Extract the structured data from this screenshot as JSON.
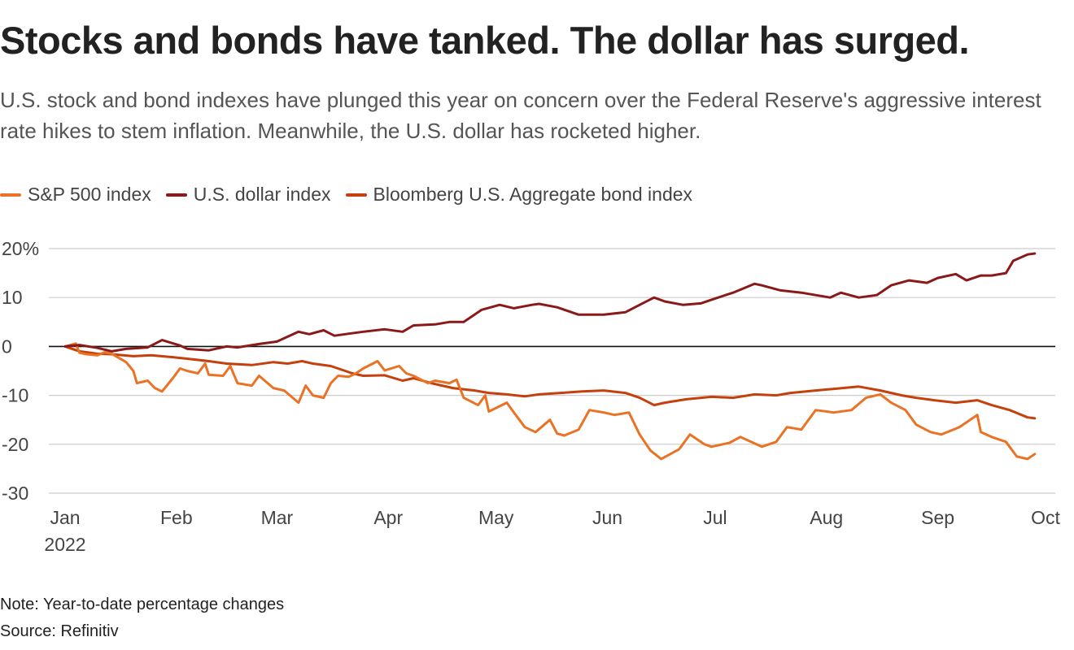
{
  "title": "Stocks and bonds have tanked. The dollar has surged.",
  "subtitle": "U.S. stock and bond indexes have plunged this year on concern over the Federal Reserve's aggressive interest rate hikes to stem inflation. Meanwhile, the U.S. dollar has rocketed higher.",
  "note": "Note: Year-to-date percentage changes",
  "source": "Source: Refinitiv",
  "chart_data": {
    "type": "line",
    "legend_placement": "top-left",
    "grid": true,
    "ylim": [
      -30,
      20
    ],
    "y_ticks": [
      {
        "value": 20,
        "label": "20%"
      },
      {
        "value": 10,
        "label": "10"
      },
      {
        "value": 0,
        "label": "0"
      },
      {
        "value": -10,
        "label": "-10"
      },
      {
        "value": -20,
        "label": "-20"
      },
      {
        "value": -30,
        "label": "-30"
      }
    ],
    "x_ticks": [
      {
        "value": "2022-01-01",
        "label": "Jan",
        "sublabel": "2022"
      },
      {
        "value": "2022-02-01",
        "label": "Feb"
      },
      {
        "value": "2022-03-01",
        "label": "Mar"
      },
      {
        "value": "2022-04-01",
        "label": "Apr"
      },
      {
        "value": "2022-05-01",
        "label": "May"
      },
      {
        "value": "2022-06-01",
        "label": "Jun"
      },
      {
        "value": "2022-07-01",
        "label": "Jul"
      },
      {
        "value": "2022-08-01",
        "label": "Aug"
      },
      {
        "value": "2022-09-01",
        "label": "Sep"
      },
      {
        "value": "2022-10-01",
        "label": "Oct"
      }
    ],
    "xlim": [
      "2022-01-01",
      "2022-10-01"
    ],
    "series": [
      {
        "name": "S&P 500 index",
        "color": "#ea7225",
        "points": [
          [
            "2022-01-01",
            0
          ],
          [
            "2022-01-04",
            0.6
          ],
          [
            "2022-01-05",
            -1.3
          ],
          [
            "2022-01-07",
            -1.6
          ],
          [
            "2022-01-10",
            -1.8
          ],
          [
            "2022-01-12",
            -1.2
          ],
          [
            "2022-01-14",
            -1.5
          ],
          [
            "2022-01-18",
            -3.2
          ],
          [
            "2022-01-20",
            -5.0
          ],
          [
            "2022-01-21",
            -7.5
          ],
          [
            "2022-01-24",
            -7.0
          ],
          [
            "2022-01-26",
            -8.5
          ],
          [
            "2022-01-28",
            -9.2
          ],
          [
            "2022-01-31",
            -6.5
          ],
          [
            "2022-02-02",
            -4.5
          ],
          [
            "2022-02-04",
            -5.0
          ],
          [
            "2022-02-07",
            -5.5
          ],
          [
            "2022-02-09",
            -3.5
          ],
          [
            "2022-02-10",
            -5.8
          ],
          [
            "2022-02-14",
            -6.0
          ],
          [
            "2022-02-16",
            -4.0
          ],
          [
            "2022-02-18",
            -7.5
          ],
          [
            "2022-02-22",
            -8.0
          ],
          [
            "2022-02-24",
            -6.0
          ],
          [
            "2022-02-28",
            -8.5
          ],
          [
            "2022-03-03",
            -9.0
          ],
          [
            "2022-03-07",
            -11.5
          ],
          [
            "2022-03-09",
            -8.0
          ],
          [
            "2022-03-11",
            -10.0
          ],
          [
            "2022-03-14",
            -10.5
          ],
          [
            "2022-03-16",
            -7.5
          ],
          [
            "2022-03-18",
            -6.0
          ],
          [
            "2022-03-21",
            -6.2
          ],
          [
            "2022-03-23",
            -5.5
          ],
          [
            "2022-03-25",
            -4.5
          ],
          [
            "2022-03-29",
            -3.0
          ],
          [
            "2022-03-31",
            -4.9
          ],
          [
            "2022-04-04",
            -4.0
          ],
          [
            "2022-04-06",
            -5.5
          ],
          [
            "2022-04-08",
            -6.0
          ],
          [
            "2022-04-12",
            -7.5
          ],
          [
            "2022-04-14",
            -7.0
          ],
          [
            "2022-04-18",
            -7.5
          ],
          [
            "2022-04-20",
            -6.8
          ],
          [
            "2022-04-22",
            -10.5
          ],
          [
            "2022-04-26",
            -12.0
          ],
          [
            "2022-04-28",
            -10.0
          ],
          [
            "2022-04-29",
            -13.3
          ],
          [
            "2022-05-04",
            -11.5
          ],
          [
            "2022-05-06",
            -13.5
          ],
          [
            "2022-05-09",
            -16.5
          ],
          [
            "2022-05-12",
            -17.5
          ],
          [
            "2022-05-16",
            -15.0
          ],
          [
            "2022-05-18",
            -17.8
          ],
          [
            "2022-05-20",
            -18.2
          ],
          [
            "2022-05-24",
            -17.0
          ],
          [
            "2022-05-27",
            -13.0
          ],
          [
            "2022-05-31",
            -13.5
          ],
          [
            "2022-06-03",
            -14.0
          ],
          [
            "2022-06-07",
            -13.5
          ],
          [
            "2022-06-10",
            -18.0
          ],
          [
            "2022-06-13",
            -21.3
          ],
          [
            "2022-06-16",
            -23.0
          ],
          [
            "2022-06-21",
            -21.0
          ],
          [
            "2022-06-24",
            -18.0
          ],
          [
            "2022-06-28",
            -20.0
          ],
          [
            "2022-06-30",
            -20.5
          ],
          [
            "2022-07-05",
            -19.7
          ],
          [
            "2022-07-08",
            -18.5
          ],
          [
            "2022-07-11",
            -19.5
          ],
          [
            "2022-07-14",
            -20.5
          ],
          [
            "2022-07-18",
            -19.5
          ],
          [
            "2022-07-21",
            -16.5
          ],
          [
            "2022-07-25",
            -17.0
          ],
          [
            "2022-07-29",
            -13.0
          ],
          [
            "2022-08-03",
            -13.5
          ],
          [
            "2022-08-08",
            -13.0
          ],
          [
            "2022-08-12",
            -10.5
          ],
          [
            "2022-08-16",
            -9.8
          ],
          [
            "2022-08-19",
            -11.5
          ],
          [
            "2022-08-23",
            -13.0
          ],
          [
            "2022-08-26",
            -16.0
          ],
          [
            "2022-08-30",
            -17.5
          ],
          [
            "2022-09-02",
            -18.0
          ],
          [
            "2022-09-07",
            -16.5
          ],
          [
            "2022-09-12",
            -14.0
          ],
          [
            "2022-09-13",
            -17.5
          ],
          [
            "2022-09-16",
            -18.5
          ],
          [
            "2022-09-20",
            -19.5
          ],
          [
            "2022-09-23",
            -22.5
          ],
          [
            "2022-09-26",
            -23.0
          ],
          [
            "2022-09-28",
            -22.0
          ]
        ]
      },
      {
        "name": "U.S. dollar index",
        "color": "#8a1a1a",
        "points": [
          [
            "2022-01-01",
            0
          ],
          [
            "2022-01-05",
            0.3
          ],
          [
            "2022-01-10",
            -0.3
          ],
          [
            "2022-01-14",
            -1.0
          ],
          [
            "2022-01-18",
            -0.5
          ],
          [
            "2022-01-24",
            -0.2
          ],
          [
            "2022-01-28",
            1.3
          ],
          [
            "2022-02-02",
            0.2
          ],
          [
            "2022-02-04",
            -0.5
          ],
          [
            "2022-02-10",
            -0.8
          ],
          [
            "2022-02-15",
            0.0
          ],
          [
            "2022-02-18",
            -0.2
          ],
          [
            "2022-02-24",
            0.5
          ],
          [
            "2022-03-01",
            1.0
          ],
          [
            "2022-03-07",
            3.0
          ],
          [
            "2022-03-10",
            2.5
          ],
          [
            "2022-03-14",
            3.3
          ],
          [
            "2022-03-17",
            2.2
          ],
          [
            "2022-03-21",
            2.6
          ],
          [
            "2022-03-25",
            3.0
          ],
          [
            "2022-03-31",
            3.5
          ],
          [
            "2022-04-05",
            3.0
          ],
          [
            "2022-04-08",
            4.3
          ],
          [
            "2022-04-14",
            4.5
          ],
          [
            "2022-04-18",
            5.0
          ],
          [
            "2022-04-22",
            5.0
          ],
          [
            "2022-04-27",
            7.5
          ],
          [
            "2022-05-02",
            8.5
          ],
          [
            "2022-05-06",
            7.8
          ],
          [
            "2022-05-11",
            8.5
          ],
          [
            "2022-05-13",
            8.7
          ],
          [
            "2022-05-18",
            8.0
          ],
          [
            "2022-05-24",
            6.5
          ],
          [
            "2022-05-31",
            6.5
          ],
          [
            "2022-06-06",
            7.0
          ],
          [
            "2022-06-10",
            8.5
          ],
          [
            "2022-06-14",
            10.0
          ],
          [
            "2022-06-17",
            9.2
          ],
          [
            "2022-06-22",
            8.5
          ],
          [
            "2022-06-27",
            8.8
          ],
          [
            "2022-07-01",
            9.8
          ],
          [
            "2022-07-06",
            11.0
          ],
          [
            "2022-07-12",
            12.8
          ],
          [
            "2022-07-14",
            12.5
          ],
          [
            "2022-07-19",
            11.5
          ],
          [
            "2022-07-25",
            11.0
          ],
          [
            "2022-07-29",
            10.5
          ],
          [
            "2022-08-02",
            10.0
          ],
          [
            "2022-08-05",
            11.0
          ],
          [
            "2022-08-10",
            10.0
          ],
          [
            "2022-08-15",
            10.5
          ],
          [
            "2022-08-19",
            12.5
          ],
          [
            "2022-08-24",
            13.5
          ],
          [
            "2022-08-29",
            13.0
          ],
          [
            "2022-09-01",
            14.0
          ],
          [
            "2022-09-06",
            14.8
          ],
          [
            "2022-09-09",
            13.5
          ],
          [
            "2022-09-13",
            14.5
          ],
          [
            "2022-09-16",
            14.5
          ],
          [
            "2022-09-20",
            15.0
          ],
          [
            "2022-09-22",
            17.5
          ],
          [
            "2022-09-26",
            18.8
          ],
          [
            "2022-09-28",
            19.0
          ]
        ]
      },
      {
        "name": "Bloomberg U.S. Aggregate bond index",
        "color": "#c4400c",
        "points": [
          [
            "2022-01-01",
            0
          ],
          [
            "2022-01-05",
            -1.0
          ],
          [
            "2022-01-10",
            -1.5
          ],
          [
            "2022-01-14",
            -1.6
          ],
          [
            "2022-01-20",
            -2.0
          ],
          [
            "2022-01-25",
            -1.8
          ],
          [
            "2022-01-31",
            -2.2
          ],
          [
            "2022-02-04",
            -2.5
          ],
          [
            "2022-02-10",
            -3.0
          ],
          [
            "2022-02-15",
            -3.5
          ],
          [
            "2022-02-22",
            -3.8
          ],
          [
            "2022-02-28",
            -3.2
          ],
          [
            "2022-03-04",
            -3.5
          ],
          [
            "2022-03-08",
            -3.0
          ],
          [
            "2022-03-11",
            -3.5
          ],
          [
            "2022-03-16",
            -4.0
          ],
          [
            "2022-03-22",
            -5.5
          ],
          [
            "2022-03-25",
            -6.0
          ],
          [
            "2022-03-31",
            -5.9
          ],
          [
            "2022-04-05",
            -7.0
          ],
          [
            "2022-04-08",
            -6.5
          ],
          [
            "2022-04-13",
            -7.5
          ],
          [
            "2022-04-19",
            -8.5
          ],
          [
            "2022-04-25",
            -9.0
          ],
          [
            "2022-04-29",
            -9.5
          ],
          [
            "2022-05-04",
            -9.8
          ],
          [
            "2022-05-09",
            -10.2
          ],
          [
            "2022-05-13",
            -9.8
          ],
          [
            "2022-05-19",
            -9.5
          ],
          [
            "2022-05-25",
            -9.2
          ],
          [
            "2022-05-31",
            -9.0
          ],
          [
            "2022-06-06",
            -9.5
          ],
          [
            "2022-06-10",
            -10.5
          ],
          [
            "2022-06-14",
            -12.0
          ],
          [
            "2022-06-17",
            -11.5
          ],
          [
            "2022-06-23",
            -10.8
          ],
          [
            "2022-06-30",
            -10.3
          ],
          [
            "2022-07-06",
            -10.5
          ],
          [
            "2022-07-12",
            -9.8
          ],
          [
            "2022-07-18",
            -10.0
          ],
          [
            "2022-07-22",
            -9.5
          ],
          [
            "2022-07-29",
            -9.0
          ],
          [
            "2022-08-04",
            -8.6
          ],
          [
            "2022-08-10",
            -8.2
          ],
          [
            "2022-08-16",
            -9.0
          ],
          [
            "2022-08-22",
            -10.0
          ],
          [
            "2022-08-26",
            -10.5
          ],
          [
            "2022-08-31",
            -11.0
          ],
          [
            "2022-09-06",
            -11.5
          ],
          [
            "2022-09-12",
            -11.0
          ],
          [
            "2022-09-16",
            -12.0
          ],
          [
            "2022-09-21",
            -13.0
          ],
          [
            "2022-09-26",
            -14.5
          ],
          [
            "2022-09-28",
            -14.7
          ]
        ]
      }
    ]
  }
}
